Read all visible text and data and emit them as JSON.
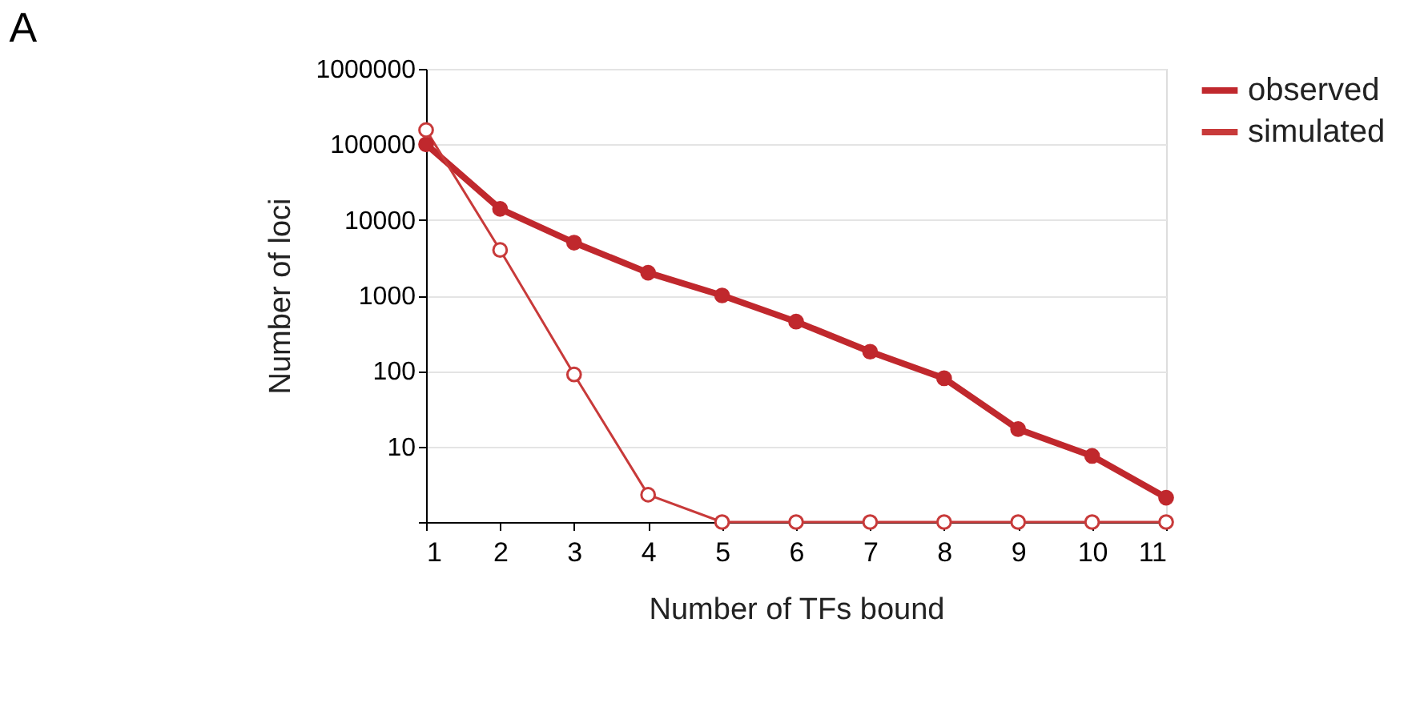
{
  "chart_data": {
    "type": "line",
    "title": "A",
    "xlabel": "Number of TFs bound",
    "ylabel": "Number of loci",
    "x": [
      1,
      2,
      3,
      4,
      5,
      6,
      7,
      8,
      9,
      10,
      11
    ],
    "series": [
      {
        "name": "observed",
        "color": "#c0282d",
        "values": [
          100000,
          14000,
          5000,
          2000,
          1000,
          450,
          180,
          80,
          17,
          7.5,
          2.1
        ],
        "marker": "circle"
      },
      {
        "name": "simulated",
        "color": "#c83a3a",
        "values": [
          155000,
          4000,
          90,
          2.3,
          1,
          1,
          1,
          1,
          1,
          1,
          1
        ],
        "marker": "open circle"
      }
    ],
    "log": "y",
    "xlim": [
      1,
      11
    ],
    "xticks": [
      1,
      2,
      3,
      4,
      5,
      6,
      7,
      8,
      9,
      10,
      11
    ],
    "ylim": [
      1,
      1000000
    ],
    "yticks": [
      {
        "value": 1,
        "label": null
      },
      10,
      100,
      1000,
      10000,
      100000,
      1000000
    ],
    "grid": "y",
    "legend": "right"
  }
}
